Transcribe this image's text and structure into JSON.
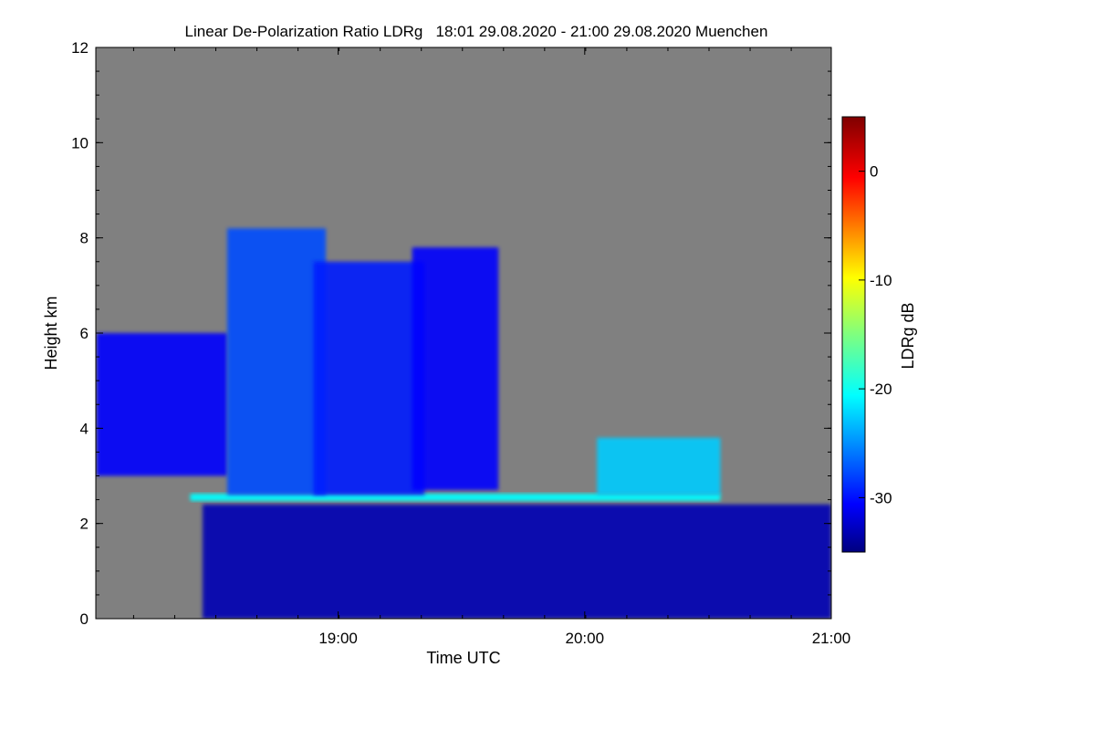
{
  "chart_data": {
    "type": "heatmap",
    "title": "Linear De-Polarization Ratio LDRg   18:01 29.08.2020 - 21:00 29.08.2020 Muenchen",
    "xlabel": "Time UTC",
    "ylabel": "Height km",
    "x_start": "18:01",
    "x_end": "21:00",
    "xlim_hours": [
      18.017,
      21.0
    ],
    "x_ticks": [
      {
        "value": 19.0,
        "label": "19:00"
      },
      {
        "value": 20.0,
        "label": "20:00"
      },
      {
        "value": 21.0,
        "label": "21:00"
      }
    ],
    "x_minor_step_hours": 0.1667,
    "ylim": [
      0,
      12
    ],
    "y_ticks": [
      0,
      2,
      4,
      6,
      8,
      10,
      12
    ],
    "y_minor_step": 0.5,
    "colorbar": {
      "label": "LDRg dB",
      "range": [
        -35,
        5
      ],
      "ticks": [
        0,
        -10,
        -20,
        -30
      ],
      "colormap": "jet"
    },
    "background_color": "#808080",
    "features": [
      {
        "name": "boundary-layer",
        "t_start": 18.45,
        "t_end": 21.0,
        "h_bottom": 0,
        "h_top": 2.4,
        "ldr": -33
      },
      {
        "name": "melting-layer-band",
        "t_start": 18.4,
        "t_end": 20.55,
        "h": 2.55,
        "ldr": -20
      },
      {
        "name": "ice-cloud-west",
        "t_start": 18.02,
        "t_end": 18.55,
        "h_bottom": 3.0,
        "h_top": 6.0,
        "ldr": -30
      },
      {
        "name": "fall-streak-1",
        "t_start": 18.55,
        "t_end": 18.95,
        "h_bottom": 2.6,
        "h_top": 8.2,
        "ldr": -27
      },
      {
        "name": "fall-streak-2",
        "t_start": 18.9,
        "t_end": 19.35,
        "h_bottom": 2.6,
        "h_top": 7.5,
        "ldr": -29
      },
      {
        "name": "fall-streak-3",
        "t_start": 19.3,
        "t_end": 19.65,
        "h_bottom": 2.7,
        "h_top": 7.8,
        "ldr": -30
      },
      {
        "name": "virga-20h",
        "t_start": 20.05,
        "t_end": 20.55,
        "h_bottom": 2.6,
        "h_top": 3.8,
        "ldr": -22
      }
    ]
  }
}
